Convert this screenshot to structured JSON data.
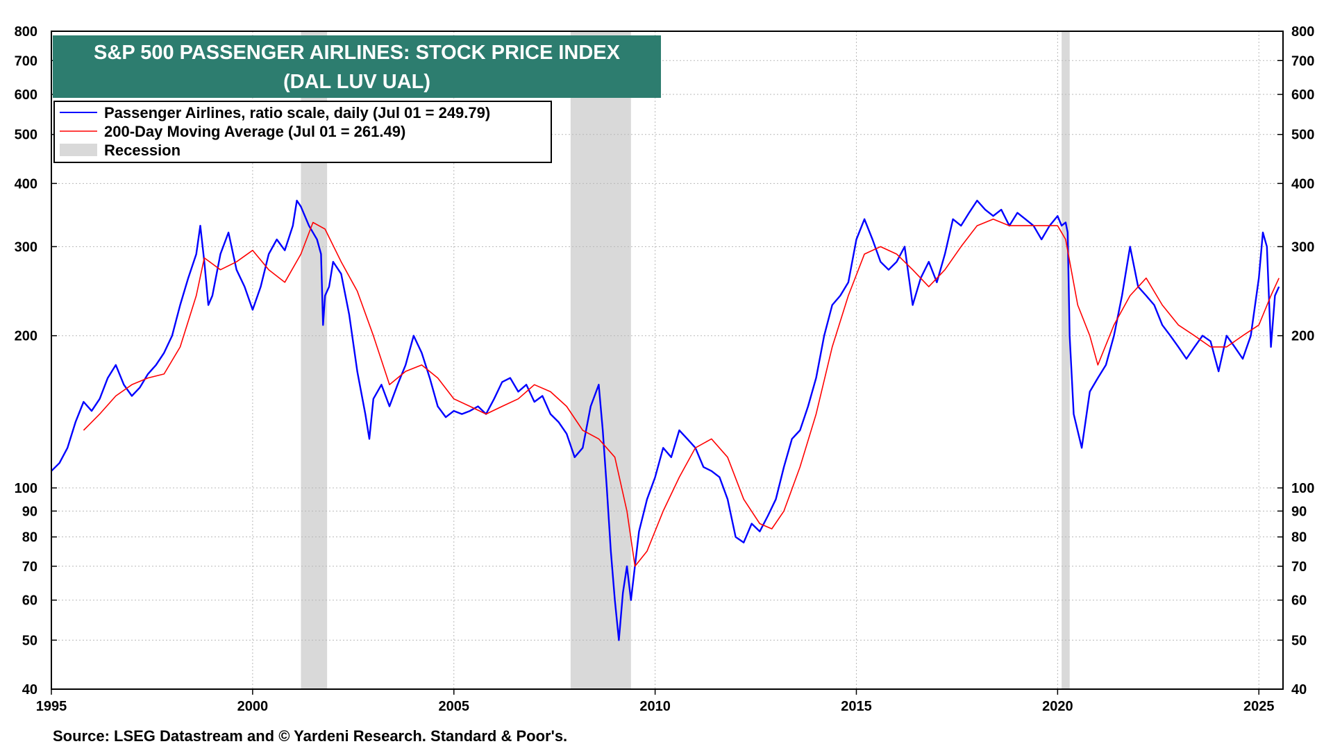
{
  "chart_data": {
    "type": "line",
    "title": "S&P 500 PASSENGER AIRLINES: STOCK PRICE INDEX",
    "subtitle": "(DAL LUV UAL)",
    "source": "Source: LSEG Datastream and © Yardeni Research. Standard & Poor's.",
    "y_scale": "log",
    "ylim": [
      40,
      800
    ],
    "xlim": [
      1995.0,
      2025.6
    ],
    "y_ticks": [
      40,
      50,
      60,
      70,
      80,
      90,
      100,
      200,
      300,
      400,
      500,
      600,
      700,
      800
    ],
    "x_ticks": [
      1995,
      2000,
      2005,
      2010,
      2015,
      2020,
      2025
    ],
    "grid": true,
    "legend_position": "top-left",
    "legend": [
      {
        "label": "Passenger Airlines, ratio scale, daily (Jul 01 = 249.79)",
        "color": "#0000ff"
      },
      {
        "label": "200-Day Moving Average (Jul 01 = 261.49)",
        "color": "#ff0000"
      },
      {
        "label": "Recession",
        "color": "#d9d9d9"
      }
    ],
    "recessions": [
      [
        2001.2,
        2001.85
      ],
      [
        2007.9,
        2009.4
      ],
      [
        2020.1,
        2020.3
      ]
    ],
    "series": [
      {
        "name": "Passenger Airlines, ratio scale, daily (Jul 01 = 249.79)",
        "color": "#0000ff",
        "x": [
          1995.0,
          1995.2,
          1995.4,
          1995.6,
          1995.8,
          1996.0,
          1996.2,
          1996.4,
          1996.6,
          1996.8,
          1997.0,
          1997.2,
          1997.4,
          1997.6,
          1997.8,
          1998.0,
          1998.2,
          1998.4,
          1998.6,
          1998.7,
          1998.8,
          1998.9,
          1999.0,
          1999.2,
          1999.4,
          1999.6,
          1999.8,
          2000.0,
          2000.2,
          2000.4,
          2000.6,
          2000.8,
          2001.0,
          2001.1,
          2001.2,
          2001.4,
          2001.6,
          2001.7,
          2001.75,
          2001.8,
          2001.9,
          2002.0,
          2002.2,
          2002.4,
          2002.6,
          2002.8,
          2002.9,
          2003.0,
          2003.2,
          2003.4,
          2003.6,
          2003.8,
          2004.0,
          2004.2,
          2004.4,
          2004.6,
          2004.8,
          2005.0,
          2005.2,
          2005.4,
          2005.6,
          2005.8,
          2006.0,
          2006.2,
          2006.4,
          2006.6,
          2006.8,
          2007.0,
          2007.2,
          2007.4,
          2007.6,
          2007.8,
          2008.0,
          2008.2,
          2008.4,
          2008.6,
          2008.7,
          2008.8,
          2008.9,
          2009.0,
          2009.1,
          2009.2,
          2009.3,
          2009.4,
          2009.6,
          2009.8,
          2010.0,
          2010.2,
          2010.4,
          2010.6,
          2010.8,
          2011.0,
          2011.2,
          2011.4,
          2011.6,
          2011.8,
          2012.0,
          2012.2,
          2012.4,
          2012.6,
          2012.8,
          2013.0,
          2013.2,
          2013.4,
          2013.6,
          2013.8,
          2014.0,
          2014.2,
          2014.4,
          2014.6,
          2014.8,
          2015.0,
          2015.2,
          2015.4,
          2015.6,
          2015.8,
          2016.0,
          2016.2,
          2016.4,
          2016.6,
          2016.8,
          2017.0,
          2017.2,
          2017.4,
          2017.6,
          2017.8,
          2018.0,
          2018.2,
          2018.4,
          2018.6,
          2018.8,
          2019.0,
          2019.2,
          2019.4,
          2019.6,
          2019.8,
          2020.0,
          2020.1,
          2020.2,
          2020.25,
          2020.3,
          2020.4,
          2020.6,
          2020.8,
          2021.0,
          2021.2,
          2021.4,
          2021.6,
          2021.8,
          2022.0,
          2022.2,
          2022.4,
          2022.6,
          2022.8,
          2023.0,
          2023.2,
          2023.4,
          2023.6,
          2023.8,
          2024.0,
          2024.2,
          2024.4,
          2024.6,
          2024.8,
          2025.0,
          2025.1,
          2025.2,
          2025.3,
          2025.4,
          2025.5
        ],
        "values": [
          108,
          112,
          120,
          135,
          148,
          142,
          150,
          165,
          175,
          160,
          152,
          158,
          168,
          175,
          185,
          200,
          230,
          260,
          290,
          330,
          280,
          230,
          240,
          290,
          320,
          270,
          250,
          225,
          250,
          290,
          310,
          295,
          330,
          370,
          360,
          330,
          310,
          290,
          210,
          240,
          250,
          280,
          265,
          220,
          170,
          140,
          125,
          150,
          160,
          145,
          160,
          175,
          200,
          185,
          165,
          145,
          138,
          142,
          140,
          142,
          145,
          140,
          150,
          162,
          165,
          155,
          160,
          148,
          152,
          140,
          135,
          128,
          115,
          120,
          145,
          160,
          130,
          100,
          75,
          60,
          50,
          62,
          70,
          60,
          82,
          95,
          105,
          120,
          115,
          130,
          125,
          120,
          110,
          108,
          105,
          95,
          80,
          78,
          85,
          82,
          88,
          95,
          110,
          125,
          130,
          145,
          165,
          200,
          230,
          240,
          255,
          310,
          340,
          310,
          280,
          270,
          280,
          300,
          230,
          260,
          280,
          255,
          290,
          340,
          330,
          350,
          370,
          355,
          345,
          355,
          330,
          350,
          340,
          330,
          310,
          330,
          345,
          330,
          335,
          320,
          200,
          140,
          120,
          155,
          165,
          175,
          200,
          240,
          300,
          250,
          240,
          230,
          210,
          200,
          190,
          180,
          190,
          200,
          195,
          170,
          200,
          190,
          180,
          200,
          260,
          320,
          300,
          190,
          240,
          250
        ]
      },
      {
        "name": "200-Day Moving Average (Jul 01 = 261.49)",
        "color": "#ff0000",
        "x": [
          1995.8,
          1996.2,
          1996.6,
          1997.0,
          1997.4,
          1997.8,
          1998.2,
          1998.6,
          1998.8,
          1999.2,
          1999.6,
          2000.0,
          2000.4,
          2000.8,
          2001.2,
          2001.5,
          2001.8,
          2002.2,
          2002.6,
          2003.0,
          2003.4,
          2003.8,
          2004.2,
          2004.6,
          2005.0,
          2005.4,
          2005.8,
          2006.2,
          2006.6,
          2007.0,
          2007.4,
          2007.8,
          2008.2,
          2008.6,
          2009.0,
          2009.3,
          2009.5,
          2009.8,
          2010.2,
          2010.6,
          2011.0,
          2011.4,
          2011.8,
          2012.2,
          2012.6,
          2012.9,
          2013.2,
          2013.6,
          2014.0,
          2014.4,
          2014.8,
          2015.2,
          2015.6,
          2016.0,
          2016.4,
          2016.8,
          2017.2,
          2017.6,
          2018.0,
          2018.4,
          2018.8,
          2019.2,
          2019.6,
          2020.0,
          2020.2,
          2020.5,
          2020.8,
          2021.0,
          2021.4,
          2021.8,
          2022.2,
          2022.6,
          2023.0,
          2023.4,
          2023.8,
          2024.2,
          2024.6,
          2025.0,
          2025.3,
          2025.5
        ],
        "values": [
          130,
          140,
          152,
          160,
          165,
          168,
          190,
          240,
          285,
          270,
          280,
          295,
          270,
          255,
          290,
          335,
          325,
          280,
          245,
          200,
          160,
          170,
          175,
          165,
          150,
          145,
          140,
          145,
          150,
          160,
          155,
          145,
          130,
          125,
          115,
          90,
          70,
          75,
          90,
          105,
          120,
          125,
          115,
          95,
          85,
          83,
          90,
          110,
          140,
          190,
          240,
          290,
          300,
          290,
          270,
          250,
          270,
          300,
          330,
          340,
          330,
          330,
          330,
          330,
          310,
          230,
          200,
          175,
          210,
          240,
          260,
          230,
          210,
          200,
          190,
          190,
          200,
          210,
          240,
          260
        ]
      }
    ]
  }
}
